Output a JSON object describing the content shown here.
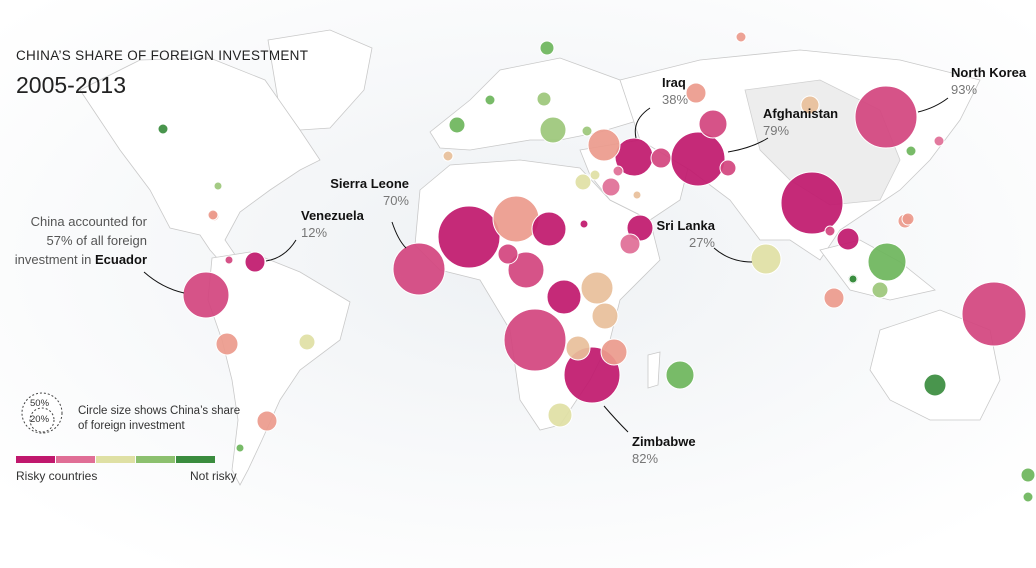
{
  "header": {
    "kicker": "CHINA’S SHARE OF FOREIGN INVESTMENT",
    "years": "2005-2013"
  },
  "callouts": {
    "north_korea": {
      "name": "North Korea",
      "value": "93%"
    },
    "iraq": {
      "name": "Iraq",
      "value": "38%"
    },
    "afghanistan": {
      "name": "Afghanistan",
      "value": "79%"
    },
    "sierra_leone": {
      "name": "Sierra Leone",
      "value": "70%"
    },
    "venezuela": {
      "name": "Venezuela",
      "value": "12%"
    },
    "sri_lanka": {
      "name": "Sri Lanka",
      "value": "27%"
    },
    "zimbabwe": {
      "name": "Zimbabwe",
      "value": "82%"
    }
  },
  "ecuador_note": {
    "line1": "China accounted for",
    "line2": "57% of all foreign",
    "line3": "investment in",
    "country": "Ecuador"
  },
  "legend": {
    "size_key_large": "50%",
    "size_key_small": "20%",
    "size_note": "Circle size shows China’s share of foreign investment",
    "low_label": "Risky countries",
    "high_label": "Not risky",
    "colors": [
      "#c0186d",
      "#e06e96",
      "#dfe0a4",
      "#8cc06e",
      "#3a8c3e"
    ]
  },
  "palette": {
    "risky1": "#c0186d",
    "risky2": "#d2447e",
    "risky3": "#e06e96",
    "salmon": "#eb9a8c",
    "tan": "#e8bf9a",
    "khaki": "#dfe0a4",
    "lightgreen": "#9cc77a",
    "green": "#6db55b",
    "darkgreen": "#3a8c3e"
  }
}
